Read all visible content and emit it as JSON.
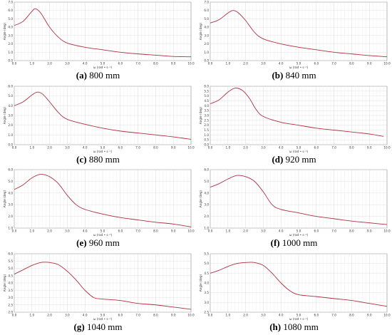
{
  "panels": [
    {
      "letter": "(a)",
      "caption": "800 mm"
    },
    {
      "letter": "(b)",
      "caption": "840 mm"
    },
    {
      "letter": "(c)",
      "caption": "880 mm"
    },
    {
      "letter": "(d)",
      "caption": "920 mm"
    },
    {
      "letter": "(e)",
      "caption": "960 mm"
    },
    {
      "letter": "(f)",
      "caption": "1000 mm"
    },
    {
      "letter": "(g)",
      "caption": "1040 mm"
    },
    {
      "letter": "(h)",
      "caption": "1080 mm"
    }
  ],
  "chart_data": [
    {
      "type": "line",
      "title": "",
      "xlabel": "ω (rad • s⁻¹)",
      "ylabel": "Angle (deg)",
      "xlim": [
        0,
        10
      ],
      "ylim": [
        0,
        7
      ],
      "yticks": [
        0,
        1,
        2,
        3,
        4,
        5,
        6,
        7
      ],
      "xticks": [
        0,
        1,
        2,
        3,
        4,
        5,
        6,
        7,
        8,
        9,
        10
      ],
      "grid": true,
      "series_color": "#b03040",
      "series": [
        {
          "x": [
            0,
            0.5,
            1,
            1.2,
            1.5,
            2,
            2.5,
            3,
            4,
            5,
            6,
            7,
            8,
            9,
            10
          ],
          "y": [
            4.2,
            4.7,
            5.9,
            6.2,
            5.7,
            4.0,
            2.8,
            2.1,
            1.6,
            1.3,
            1.0,
            0.8,
            0.65,
            0.5,
            0.45
          ]
        }
      ]
    },
    {
      "type": "line",
      "title": "",
      "xlabel": "ω (rad • s⁻¹)",
      "ylabel": "Angle (deg)",
      "xlim": [
        0,
        10
      ],
      "ylim": [
        0,
        7
      ],
      "yticks": [
        0,
        1,
        2,
        3,
        4,
        5,
        6,
        7
      ],
      "xticks": [
        0,
        1,
        2,
        3,
        4,
        5,
        6,
        7,
        8,
        9,
        10
      ],
      "grid": true,
      "series_color": "#b03040",
      "series": [
        {
          "x": [
            0,
            0.5,
            1,
            1.3,
            1.6,
            2,
            2.5,
            3,
            4,
            5,
            6,
            7,
            8,
            9,
            10
          ],
          "y": [
            4.5,
            4.9,
            5.7,
            6.0,
            5.7,
            4.8,
            3.4,
            2.6,
            2.0,
            1.6,
            1.3,
            1.0,
            0.8,
            0.6,
            0.45
          ]
        }
      ]
    },
    {
      "type": "line",
      "title": "",
      "xlabel": "ω (rad • s⁻¹)",
      "ylabel": "Angle (deg)",
      "xlim": [
        0,
        10
      ],
      "ylim": [
        0,
        6
      ],
      "yticks": [
        0,
        1,
        2,
        3,
        4,
        5,
        6
      ],
      "xticks": [
        0,
        1,
        2,
        3,
        4,
        5,
        6,
        7,
        8,
        9,
        10
      ],
      "grid": true,
      "series_color": "#b03040",
      "series": [
        {
          "x": [
            0,
            0.5,
            1,
            1.3,
            1.6,
            2,
            2.5,
            3,
            4,
            5,
            6,
            7,
            8,
            9,
            10
          ],
          "y": [
            4.0,
            4.4,
            5.1,
            5.4,
            5.2,
            4.4,
            3.3,
            2.6,
            2.1,
            1.7,
            1.4,
            1.2,
            1.0,
            0.8,
            0.55
          ]
        }
      ]
    },
    {
      "type": "line",
      "title": "",
      "xlabel": "ω (rad • s⁻¹)",
      "ylabel": "Angle (deg)",
      "xlim": [
        0,
        10
      ],
      "ylim": [
        0,
        6
      ],
      "yticks": [
        0,
        0.5,
        1,
        1.5,
        2,
        2.5,
        3,
        3.5,
        4,
        4.5,
        5,
        5.5,
        6
      ],
      "xticks": [
        0,
        1,
        2,
        3,
        4,
        5,
        6,
        7,
        8,
        9,
        10
      ],
      "grid": true,
      "series_color": "#b03040",
      "series": [
        {
          "x": [
            0,
            0.5,
            1,
            1.4,
            1.8,
            2.2,
            2.6,
            3,
            4,
            5,
            6,
            7,
            8,
            9,
            9.8
          ],
          "y": [
            4.2,
            4.6,
            5.4,
            5.8,
            5.6,
            4.8,
            3.6,
            2.9,
            2.3,
            2.0,
            1.7,
            1.5,
            1.3,
            1.1,
            0.85
          ]
        }
      ]
    },
    {
      "type": "line",
      "title": "",
      "xlabel": "ω (rad • s⁻¹)",
      "ylabel": "Angle (deg)",
      "xlim": [
        0,
        10
      ],
      "ylim": [
        1,
        6
      ],
      "yticks": [
        1,
        2,
        3,
        4,
        5,
        6
      ],
      "xticks": [
        0,
        1,
        2,
        3,
        4,
        5,
        6,
        7,
        8,
        9,
        10
      ],
      "grid": true,
      "series_color": "#b03040",
      "series": [
        {
          "x": [
            0,
            0.5,
            1,
            1.5,
            2,
            2.5,
            3,
            3.5,
            4,
            5,
            6,
            7,
            8,
            9,
            10
          ],
          "y": [
            4.3,
            4.7,
            5.3,
            5.6,
            5.4,
            4.8,
            3.8,
            3.0,
            2.6,
            2.2,
            1.9,
            1.7,
            1.5,
            1.35,
            1.1
          ]
        }
      ]
    },
    {
      "type": "line",
      "title": "",
      "xlabel": "ω (rad • s⁻¹)",
      "ylabel": "Angle (deg)",
      "xlim": [
        0,
        10
      ],
      "ylim": [
        1,
        6
      ],
      "yticks": [
        1,
        2,
        3,
        4,
        5,
        6
      ],
      "xticks": [
        0,
        1,
        2,
        3,
        4,
        5,
        6,
        7,
        8,
        9,
        10
      ],
      "grid": true,
      "series_color": "#b03040",
      "series": [
        {
          "x": [
            0,
            0.5,
            1,
            1.5,
            2,
            2.5,
            3,
            3.5,
            4,
            5,
            6,
            7,
            8,
            9,
            10
          ],
          "y": [
            4.5,
            4.8,
            5.2,
            5.5,
            5.4,
            5.0,
            4.1,
            3.0,
            2.6,
            2.3,
            2.0,
            1.8,
            1.6,
            1.45,
            1.3
          ]
        }
      ]
    },
    {
      "type": "line",
      "title": "",
      "xlabel": "ω (rad • s⁻¹)",
      "ylabel": "Angle (deg)",
      "xlim": [
        0,
        10
      ],
      "ylim": [
        2,
        6
      ],
      "yticks": [
        2,
        2.5,
        3,
        3.5,
        4,
        4.5,
        5,
        5.5,
        6
      ],
      "xticks": [
        0,
        1,
        2,
        3,
        4,
        5,
        6,
        7,
        8,
        9,
        10
      ],
      "grid": true,
      "series_color": "#b03040",
      "series": [
        {
          "x": [
            0,
            0.5,
            1,
            1.5,
            2,
            2.5,
            3,
            3.5,
            4,
            4.5,
            5,
            6,
            7,
            8,
            9,
            10
          ],
          "y": [
            4.6,
            4.9,
            5.2,
            5.4,
            5.4,
            5.25,
            4.8,
            4.2,
            3.5,
            3.0,
            2.9,
            2.8,
            2.6,
            2.5,
            2.35,
            2.2
          ]
        }
      ]
    },
    {
      "type": "line",
      "title": "",
      "xlabel": "ω (rad • s⁻¹)",
      "ylabel": "Angle (deg)",
      "xlim": [
        0,
        10
      ],
      "ylim": [
        2.5,
        5.5
      ],
      "yticks": [
        2.5,
        3,
        3.5,
        4,
        4.5,
        5,
        5.5
      ],
      "xticks": [
        0,
        1,
        2,
        3,
        4,
        5,
        6,
        7,
        8,
        9,
        10
      ],
      "grid": true,
      "series_color": "#b03040",
      "series": [
        {
          "x": [
            0,
            0.5,
            1,
            1.5,
            2,
            2.5,
            3,
            3.5,
            4,
            4.5,
            5,
            6,
            7,
            8,
            9,
            10
          ],
          "y": [
            4.5,
            4.65,
            4.85,
            5.0,
            5.05,
            5.05,
            4.9,
            4.5,
            4.0,
            3.6,
            3.4,
            3.3,
            3.2,
            3.1,
            2.95,
            2.8
          ]
        }
      ]
    }
  ]
}
